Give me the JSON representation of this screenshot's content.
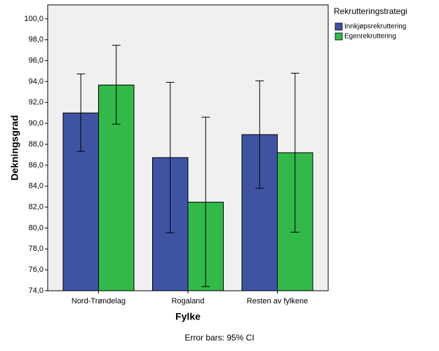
{
  "chart_data": {
    "type": "bar",
    "categories": [
      "Nord-Trøndelag",
      "Rogaland",
      "Resten av fylkene"
    ],
    "series": [
      {
        "name": "Innkjøpsrekruttering",
        "color": "#3e54a3",
        "values": [
          91.0,
          86.73,
          88.93
        ],
        "ci_low": [
          87.33,
          79.53,
          83.8
        ],
        "ci_high": [
          94.73,
          93.93,
          94.07
        ]
      },
      {
        "name": "Egenrekruttering",
        "color": "#33b84a",
        "values": [
          93.67,
          82.47,
          87.2
        ],
        "ci_low": [
          89.93,
          74.4,
          79.6
        ],
        "ci_high": [
          97.47,
          90.6,
          94.8
        ]
      }
    ],
    "ylim": [
      74,
      101.33
    ],
    "yticks": [
      {
        "value": 74,
        "label": "74,0"
      },
      {
        "value": 76,
        "label": "76,0"
      },
      {
        "value": 78,
        "label": "78,0"
      },
      {
        "value": 80,
        "label": "80,0"
      },
      {
        "value": 82,
        "label": "82,0"
      },
      {
        "value": 84,
        "label": "84,0"
      },
      {
        "value": 86,
        "label": "86,0"
      },
      {
        "value": 88,
        "label": "88,0"
      },
      {
        "value": 90,
        "label": "90,0"
      },
      {
        "value": 92,
        "label": "92,0"
      },
      {
        "value": 94,
        "label": "94,0"
      },
      {
        "value": 96,
        "label": "96,0"
      },
      {
        "value": 98,
        "label": "98,0"
      },
      {
        "value": 100,
        "label": "100,0"
      }
    ],
    "xlabel": "Fylke",
    "ylabel": "Dekningsgrad",
    "legend_title": "Rekrutteringstrategi",
    "note": "Error bars: 95% CI",
    "plot_background": "#f0f0f0"
  }
}
